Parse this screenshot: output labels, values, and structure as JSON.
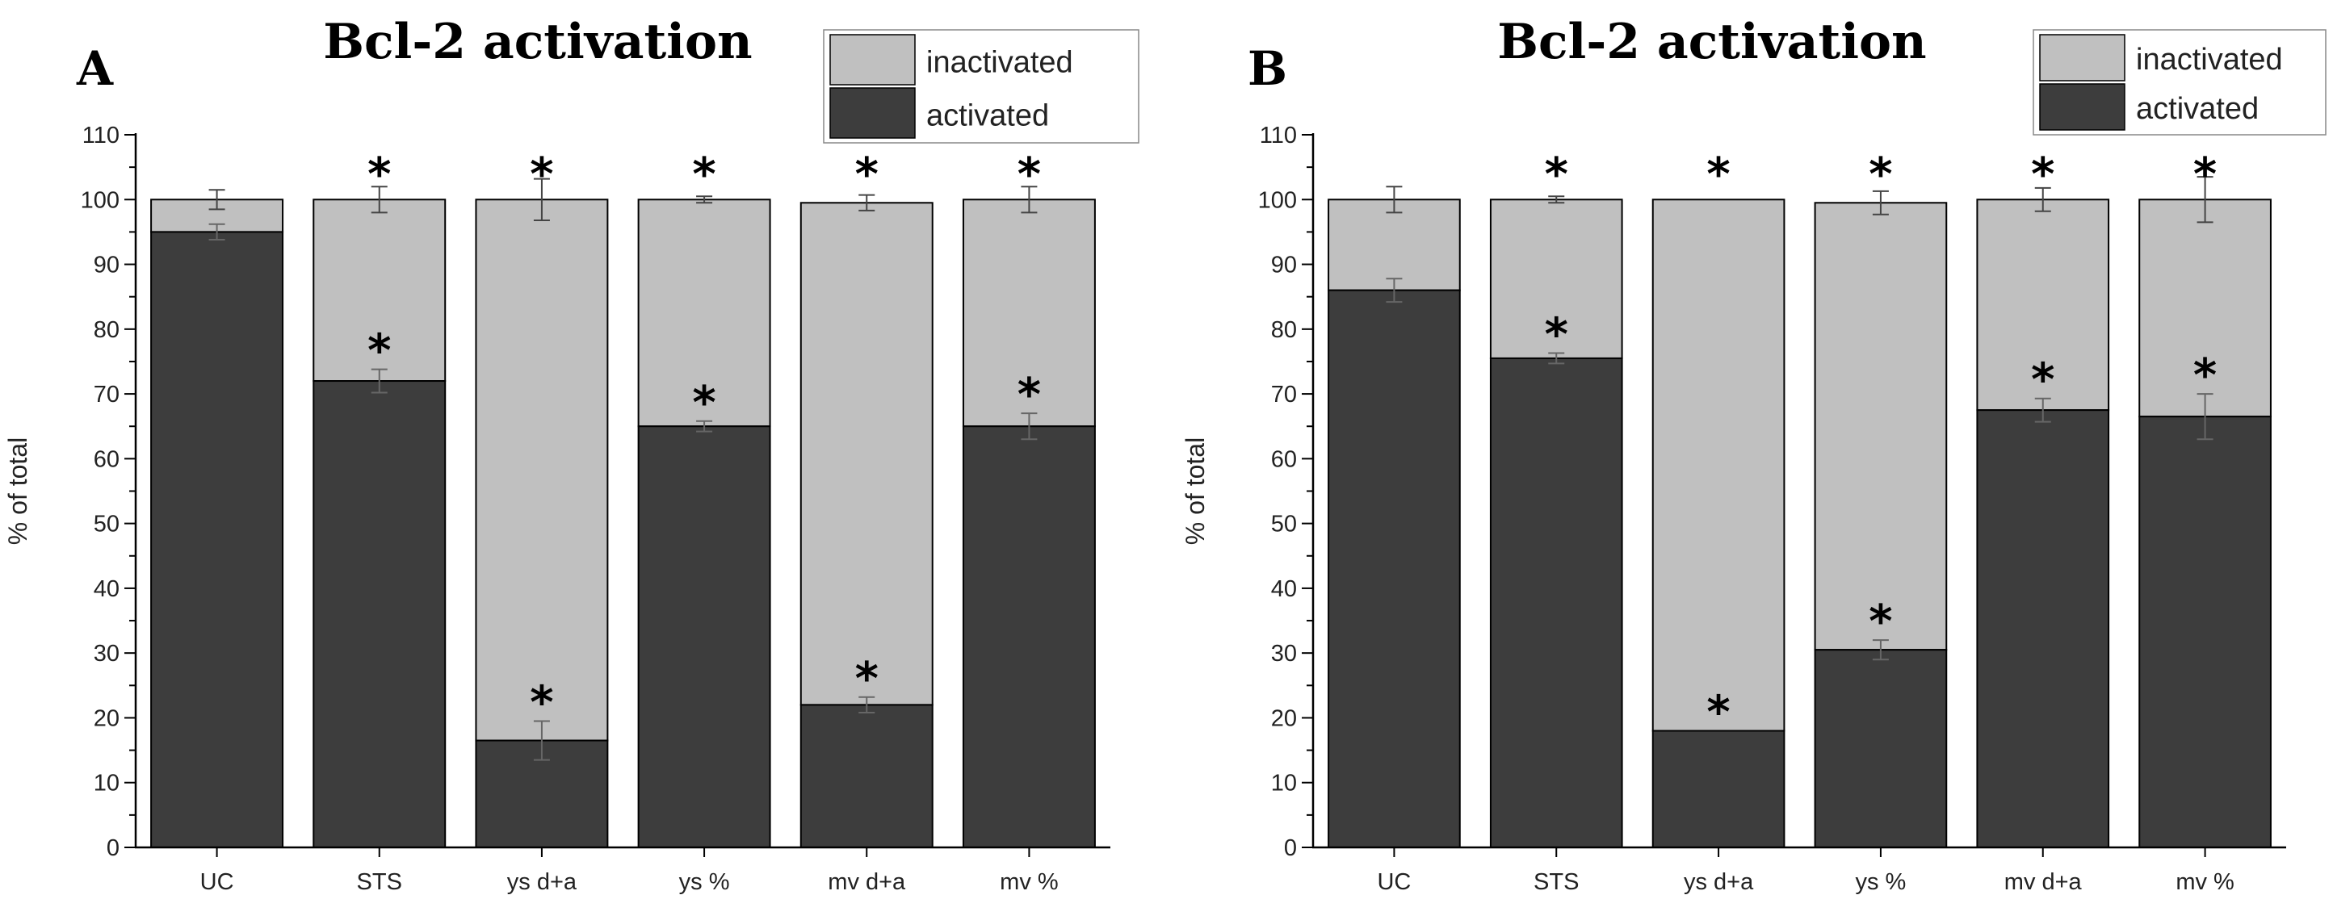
{
  "figure": {
    "colors": {
      "activated": "#3d3d3d",
      "inactivated": "#c0c0c0",
      "axis": "#000000",
      "background": "#ffffff"
    }
  },
  "chart_data": [
    {
      "type": "bar",
      "stacked": true,
      "panel_label": "A",
      "title": "Bcl-2 activation",
      "xlabel": "",
      "ylabel": "% of total",
      "ylim": [
        0,
        110
      ],
      "yticks": [
        "0",
        "10",
        "20",
        "30",
        "40",
        "50",
        "60",
        "70",
        "80",
        "90",
        "100",
        "110"
      ],
      "legend": {
        "position": "top-right",
        "entries": [
          "inactivated",
          "activated"
        ]
      },
      "categories": [
        "UC",
        "STS",
        "ys d+a",
        "ys %",
        "mv d+a",
        "mv %"
      ],
      "series": [
        {
          "name": "activated",
          "values": [
            95,
            72,
            16.5,
            65,
            22,
            65
          ],
          "errors": [
            1.2,
            1.8,
            3,
            0.8,
            1.2,
            2
          ]
        },
        {
          "name": "inactivated",
          "values": [
            5,
            28,
            83.5,
            35,
            77.5,
            35
          ],
          "errors": [
            1.5,
            2,
            3.2,
            0.5,
            1.2,
            2
          ]
        }
      ],
      "significance": {
        "activated": [
          "",
          "*",
          "*",
          "*",
          "*",
          "*"
        ],
        "top": [
          "",
          "*",
          "*",
          "*",
          "*",
          "*"
        ]
      }
    },
    {
      "type": "bar",
      "stacked": true,
      "panel_label": "B",
      "title": "Bcl-2 activation",
      "xlabel": "",
      "ylabel": "% of total",
      "ylim": [
        0,
        110
      ],
      "yticks": [
        "0",
        "10",
        "20",
        "30",
        "40",
        "50",
        "60",
        "70",
        "80",
        "90",
        "100",
        "110"
      ],
      "legend": {
        "position": "top-right",
        "entries": [
          "inactivated",
          "activated"
        ]
      },
      "categories": [
        "UC",
        "STS",
        "ys d+a",
        "ys %",
        "mv d+a",
        "mv %"
      ],
      "series": [
        {
          "name": "activated",
          "values": [
            86,
            75.5,
            18,
            30.5,
            67.5,
            66.5
          ],
          "errors": [
            1.8,
            0.8,
            0,
            1.5,
            1.8,
            3.5
          ]
        },
        {
          "name": "inactivated",
          "values": [
            14,
            24.5,
            82,
            69,
            32.5,
            33.5
          ],
          "errors": [
            2,
            0.5,
            0,
            1.8,
            1.8,
            3.5
          ]
        }
      ],
      "significance": {
        "activated": [
          "",
          "*",
          "*",
          "*",
          "*",
          "*"
        ],
        "top": [
          "",
          "*",
          "*",
          "*",
          "*",
          "*"
        ]
      }
    }
  ]
}
